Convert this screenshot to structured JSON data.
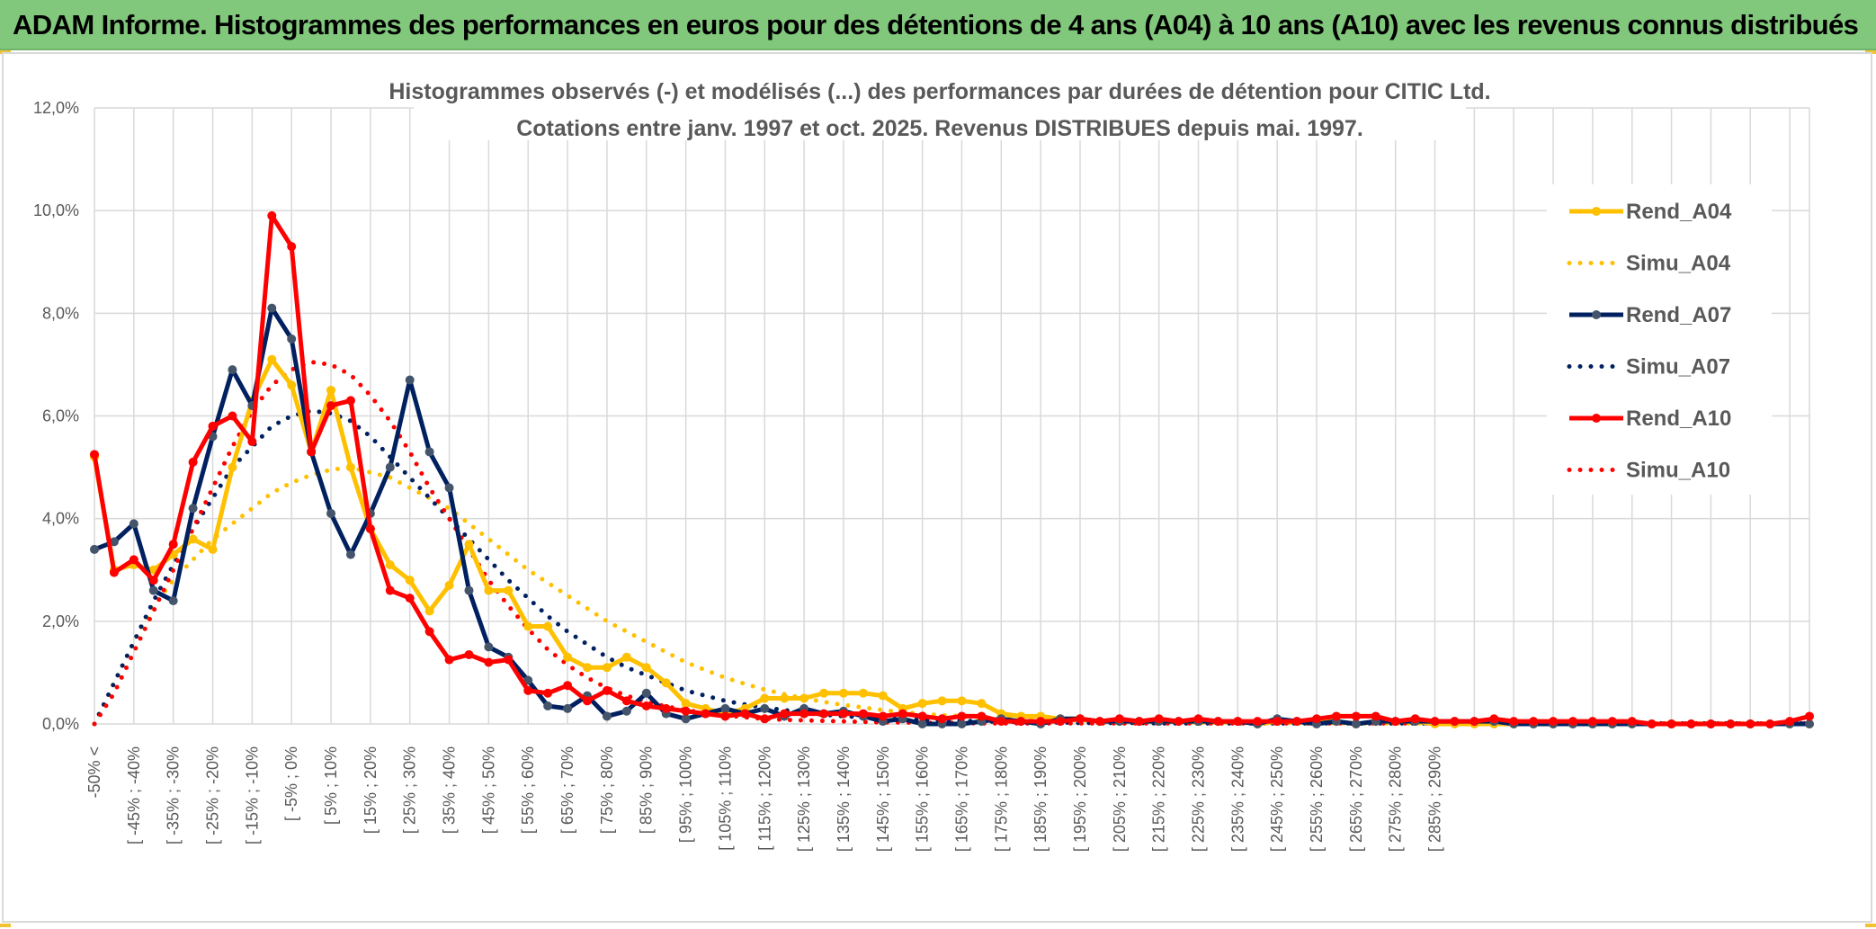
{
  "header": {
    "title": "ADAM Informe. Histogrammes des performances en euros pour des détentions de 4 ans (A04) à 10 ans (A10) avec les revenus connus distribués"
  },
  "chart_data": {
    "type": "line",
    "title": "Histogrammes observés (-) et modélisés (...) des performances par durées de détention pour CITIC Ltd.",
    "subtitle": "Cotations entre janv. 1997 et oct. 2025. Revenus DISTRIBUES depuis mai. 1997.",
    "xlabel": "",
    "ylabel": "",
    "ylim": [
      0,
      12
    ],
    "y_ticks": [
      "0,0%",
      "2,0%",
      "4,0%",
      "6,0%",
      "8,0%",
      "10,0%",
      "12,0%"
    ],
    "x_tick_labels": [
      "-50% <",
      "[ -45% ; -40%",
      "[ -35% ; -30%",
      "[ -25% ; -20%",
      "[ -15% ; -10%",
      "[ -5% ; 0%",
      "[ 5% ; 10%",
      "[ 15% ; 20%",
      "[ 25% ; 30%",
      "[ 35% ; 40%",
      "[ 45% ; 50%",
      "[ 55% ; 60%",
      "[ 65% ; 70%",
      "[ 75% ; 80%",
      "[ 85% ; 90%",
      "[ 95% ; 100%",
      "[ 105% ; 110%",
      "[ 115% ; 120%",
      "[ 125% ; 130%",
      "[ 135% ; 140%",
      "[ 145% ; 150%",
      "[ 155% ; 160%",
      "[ 165% ; 170%",
      "[ 175% ; 180%",
      "[ 185% ; 190%",
      "[ 195% ; 200%",
      "[ 205% ; 210%",
      "[ 215% ; 220%",
      "[ 225% ; 230%",
      "[ 235% ; 240%",
      "[ 245% ; 250%",
      "[ 255% ; 260%",
      "[ 265% ; 270%",
      "[ 275% ; 280%",
      "[ 285% ; 290%"
    ],
    "grid": true,
    "legend_position": "right",
    "series": [
      {
        "name": "Rend_A04",
        "color": "#ffc000",
        "style": "solid",
        "marker": true,
        "values": [
          5.2,
          3.0,
          3.1,
          3.0,
          3.3,
          3.6,
          3.4,
          5.0,
          6.3,
          7.1,
          6.6,
          5.3,
          6.5,
          5.0,
          3.8,
          3.1,
          2.8,
          2.2,
          2.7,
          3.5,
          2.6,
          2.6,
          1.9,
          1.9,
          1.3,
          1.1,
          1.1,
          1.3,
          1.1,
          0.8,
          0.4,
          0.3,
          0.2,
          0.3,
          0.5,
          0.5,
          0.5,
          0.6,
          0.6,
          0.6,
          0.55,
          0.3,
          0.4,
          0.45,
          0.45,
          0.4,
          0.2,
          0.15,
          0.15,
          0.1,
          0.1,
          0.05,
          0.05,
          0.05,
          0.05,
          0.05,
          0.05,
          0.05,
          0.05,
          0.0,
          0.05,
          0.05,
          0.05,
          0.05,
          0.0,
          0.05,
          0.05,
          0.05,
          0.0,
          0.0,
          0.0,
          0.0,
          0.0,
          0.0,
          0.0,
          0.0,
          0.0,
          0.0,
          0.0,
          0.0,
          0.0,
          0.0,
          0.0,
          0.0,
          0.0,
          0.0,
          0.0,
          0.0
        ]
      },
      {
        "name": "Simu_A04",
        "color": "#ffc000",
        "style": "dotted",
        "marker": false,
        "values": [
          0.0,
          0.8,
          1.6,
          2.3,
          2.8,
          3.2,
          3.6,
          3.9,
          4.2,
          4.5,
          4.7,
          4.85,
          4.95,
          5.0,
          4.9,
          4.8,
          4.6,
          4.4,
          4.2,
          3.9,
          3.6,
          3.3,
          3.0,
          2.75,
          2.5,
          2.25,
          2.0,
          1.8,
          1.6,
          1.4,
          1.2,
          1.05,
          0.9,
          0.78,
          0.67,
          0.58,
          0.5,
          0.43,
          0.37,
          0.32,
          0.27,
          0.23,
          0.2,
          0.17,
          0.15,
          0.13,
          0.11,
          0.1,
          0.09,
          0.08,
          0.07,
          0.06,
          0.05,
          0.05,
          0.04,
          0.04,
          0.03,
          0.03,
          0.03,
          0.02,
          0.02,
          0.02,
          0.02,
          0.02,
          0.01,
          0.01,
          0.01,
          0.01,
          0.01,
          0.01,
          0.01,
          0.01,
          0.01,
          0.01,
          0.01,
          0.01,
          0.01,
          0.01,
          0.01,
          0.01,
          0.01,
          0.01,
          0.01,
          0.01,
          0.01,
          0.01,
          0.01,
          0.01
        ]
      },
      {
        "name": "Rend_A07",
        "color": "#002060",
        "style": "solid",
        "marker": true,
        "values": [
          3.4,
          3.55,
          3.9,
          2.6,
          2.4,
          4.2,
          5.6,
          6.9,
          6.2,
          8.1,
          7.5,
          5.3,
          4.1,
          3.3,
          4.1,
          5.0,
          6.7,
          5.3,
          4.6,
          2.6,
          1.5,
          1.3,
          0.85,
          0.35,
          0.3,
          0.55,
          0.15,
          0.25,
          0.6,
          0.2,
          0.1,
          0.2,
          0.3,
          0.2,
          0.3,
          0.15,
          0.3,
          0.2,
          0.25,
          0.15,
          0.05,
          0.1,
          0.0,
          0.0,
          0.0,
          0.05,
          0.1,
          0.05,
          0.0,
          0.1,
          0.1,
          0.05,
          0.05,
          0.05,
          0.05,
          0.05,
          0.05,
          0.05,
          0.05,
          0.0,
          0.1,
          0.05,
          0.0,
          0.05,
          0.0,
          0.05,
          0.05,
          0.05,
          0.05,
          0.05,
          0.05,
          0.05,
          0.0,
          0.0,
          0.0,
          0.0,
          0.0,
          0.0,
          0.0,
          0.0,
          0.0,
          0.0,
          0.0,
          0.0,
          0.0,
          0.0,
          0.0,
          0.0
        ]
      },
      {
        "name": "Simu_A07",
        "color": "#002060",
        "style": "dotted",
        "marker": false,
        "values": [
          0.0,
          0.8,
          1.6,
          2.4,
          3.1,
          3.8,
          4.4,
          5.0,
          5.4,
          5.8,
          6.0,
          6.1,
          6.05,
          5.9,
          5.6,
          5.2,
          4.8,
          4.4,
          4.0,
          3.6,
          3.2,
          2.8,
          2.45,
          2.1,
          1.8,
          1.55,
          1.3,
          1.1,
          0.95,
          0.8,
          0.65,
          0.55,
          0.45,
          0.38,
          0.32,
          0.27,
          0.22,
          0.18,
          0.15,
          0.13,
          0.11,
          0.09,
          0.08,
          0.07,
          0.06,
          0.05,
          0.04,
          0.04,
          0.03,
          0.03,
          0.02,
          0.02,
          0.02,
          0.02,
          0.01,
          0.01,
          0.01,
          0.01,
          0.01,
          0.01,
          0.01,
          0.01,
          0.01,
          0.01,
          0.01,
          0.01,
          0.01,
          0.01,
          0.01,
          0.01,
          0.01,
          0.01,
          0.01,
          0.01,
          0.01,
          0.01,
          0.01,
          0.01,
          0.01,
          0.01,
          0.01,
          0.01,
          0.01,
          0.01,
          0.01,
          0.01,
          0.01,
          0.01
        ]
      },
      {
        "name": "Rend_A10",
        "color": "#ff0000",
        "style": "solid",
        "marker": true,
        "values": [
          5.25,
          2.95,
          3.2,
          2.8,
          3.5,
          5.1,
          5.8,
          6.0,
          5.5,
          9.9,
          9.3,
          5.3,
          6.2,
          6.3,
          3.8,
          2.6,
          2.45,
          1.8,
          1.25,
          1.35,
          1.2,
          1.25,
          0.65,
          0.6,
          0.75,
          0.45,
          0.65,
          0.45,
          0.35,
          0.3,
          0.25,
          0.2,
          0.15,
          0.2,
          0.1,
          0.2,
          0.2,
          0.2,
          0.2,
          0.2,
          0.15,
          0.2,
          0.15,
          0.1,
          0.15,
          0.15,
          0.05,
          0.05,
          0.05,
          0.05,
          0.1,
          0.05,
          0.1,
          0.05,
          0.1,
          0.05,
          0.1,
          0.05,
          0.05,
          0.05,
          0.05,
          0.05,
          0.1,
          0.15,
          0.15,
          0.15,
          0.05,
          0.1,
          0.05,
          0.05,
          0.05,
          0.1,
          0.05,
          0.05,
          0.05,
          0.05,
          0.05,
          0.05,
          0.05,
          0.0,
          0.0,
          0.0,
          0.0,
          0.0,
          0.0,
          0.0,
          0.05,
          0.15
        ]
      },
      {
        "name": "Simu_A10",
        "color": "#ff0000",
        "style": "dotted",
        "marker": false,
        "values": [
          0.0,
          0.6,
          1.4,
          2.2,
          3.0,
          3.8,
          4.6,
          5.4,
          6.1,
          6.6,
          6.9,
          7.05,
          7.0,
          6.8,
          6.4,
          5.9,
          5.3,
          4.6,
          4.0,
          3.4,
          2.8,
          2.3,
          1.85,
          1.45,
          1.15,
          0.9,
          0.7,
          0.55,
          0.43,
          0.34,
          0.27,
          0.21,
          0.17,
          0.13,
          0.1,
          0.08,
          0.07,
          0.06,
          0.05,
          0.04,
          0.03,
          0.03,
          0.02,
          0.02,
          0.02,
          0.01,
          0.01,
          0.01,
          0.01,
          0.01,
          0.01,
          0.01,
          0.01,
          0.01,
          0.01,
          0.01,
          0.01,
          0.01,
          0.01,
          0.01,
          0.01,
          0.01,
          0.01,
          0.01,
          0.01,
          0.01,
          0.01,
          0.01,
          0.01,
          0.01,
          0.01,
          0.01,
          0.01,
          0.01,
          0.01,
          0.01,
          0.01,
          0.01,
          0.01,
          0.01,
          0.01,
          0.01,
          0.01,
          0.01,
          0.01,
          0.01,
          0.01,
          0.01
        ]
      }
    ]
  }
}
